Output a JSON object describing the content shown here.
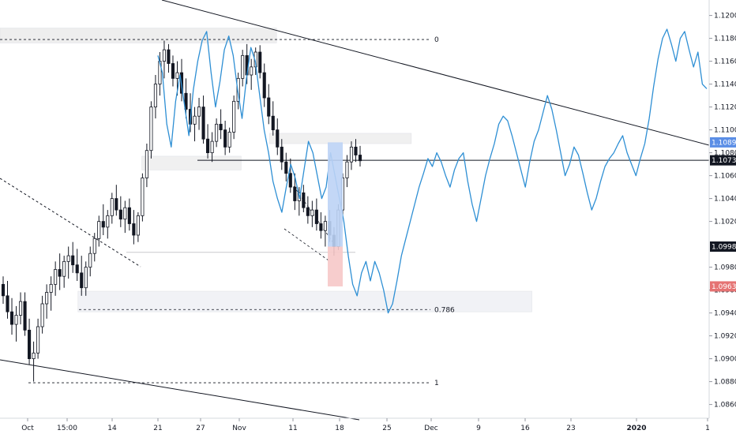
{
  "chart_data": {
    "type": "line",
    "title": "",
    "xlabel": "",
    "ylabel": "",
    "ylim": [
      1.0848,
      1.1208
    ],
    "y_ticks": [
      {
        "value": 1.12,
        "label": "1.12000"
      },
      {
        "value": 1.118,
        "label": "1.11800"
      },
      {
        "value": 1.116,
        "label": "1.11600"
      },
      {
        "value": 1.114,
        "label": "1.11400"
      },
      {
        "value": 1.112,
        "label": "1.11200"
      },
      {
        "value": 1.11,
        "label": "1.11000"
      },
      {
        "value": 1.108,
        "label": "1.10800"
      },
      {
        "value": 1.106,
        "label": "1.10600"
      },
      {
        "value": 1.104,
        "label": "1.10400"
      },
      {
        "value": 1.102,
        "label": "1.10200"
      },
      {
        "value": 1.098,
        "label": "1.09800"
      },
      {
        "value": 1.096,
        "label": "1.09600"
      },
      {
        "value": 1.094,
        "label": "1.09400"
      },
      {
        "value": 1.092,
        "label": "1.09200"
      },
      {
        "value": 1.09,
        "label": "1.09000"
      },
      {
        "value": 1.088,
        "label": "1.08800"
      },
      {
        "value": 1.086,
        "label": "1.08600"
      }
    ],
    "x_ticks": [
      {
        "label": "Oct",
        "bold": false
      },
      {
        "label": "15:00",
        "bold": false
      },
      {
        "label": "14",
        "bold": false
      },
      {
        "label": "21",
        "bold": false
      },
      {
        "label": "27",
        "bold": false
      },
      {
        "label": "Nov",
        "bold": false
      },
      {
        "label": "11",
        "bold": false
      },
      {
        "label": "18",
        "bold": false
      },
      {
        "label": "25",
        "bold": false
      },
      {
        "label": "Dec",
        "bold": false
      },
      {
        "label": "9",
        "bold": false
      },
      {
        "label": "16",
        "bold": false
      },
      {
        "label": "23",
        "bold": false
      },
      {
        "label": "2020",
        "bold": true
      },
      {
        "label": "1",
        "bold": false
      }
    ],
    "price_badges": [
      {
        "value": 1.10891,
        "label": "1.10891",
        "color": "#5b8ee6"
      },
      {
        "value": 1.10734,
        "label": "1.10734",
        "color": "#131722"
      },
      {
        "value": 1.0998,
        "label": "1.09980",
        "color": "#131722"
      },
      {
        "value": 1.09632,
        "label": "1.09632",
        "color": "#e57373"
      }
    ],
    "fib_levels": [
      {
        "value": 1.1179,
        "label": "0"
      },
      {
        "value": 1.0943,
        "label": "0.786"
      },
      {
        "value": 1.0879,
        "label": "1"
      }
    ],
    "series": [
      {
        "kind": "candlestick",
        "ohlc": [
          [
            1.0965,
            1.0972,
            1.0948,
            1.0955
          ],
          [
            1.0955,
            1.0968,
            1.0935,
            1.0941
          ],
          [
            1.0941,
            1.0953,
            1.0921,
            1.093
          ],
          [
            1.093,
            1.0946,
            1.0915,
            1.0938
          ],
          [
            1.0938,
            1.0958,
            1.093,
            1.095
          ],
          [
            1.095,
            1.0958,
            1.092,
            1.0925
          ],
          [
            1.0925,
            1.0935,
            1.0895,
            1.09
          ],
          [
            1.09,
            1.0915,
            1.088,
            1.0905
          ],
          [
            1.0905,
            1.0935,
            1.09,
            1.0928
          ],
          [
            1.0928,
            1.0955,
            1.0922,
            1.0948
          ],
          [
            1.0948,
            1.0965,
            1.0935,
            1.0958
          ],
          [
            1.0958,
            1.0972,
            1.0942,
            1.0965
          ],
          [
            1.0965,
            1.0985,
            1.0955,
            1.0978
          ],
          [
            1.0978,
            1.0992,
            1.096,
            1.0972
          ],
          [
            1.0972,
            1.099,
            1.0962,
            1.0985
          ],
          [
            1.0985,
            1.0998,
            1.097,
            1.099
          ],
          [
            1.099,
            1.1002,
            1.0975,
            1.0982
          ],
          [
            1.0982,
            1.0996,
            1.0968,
            1.0975
          ],
          [
            1.0975,
            1.099,
            1.0955,
            1.0962
          ],
          [
            1.0962,
            1.0985,
            1.0955,
            1.098
          ],
          [
            1.098,
            1.0998,
            1.0972,
            1.0992
          ],
          [
            1.0992,
            1.101,
            1.0985,
            1.1005
          ],
          [
            1.1005,
            1.1025,
            1.0998,
            1.102
          ],
          [
            1.102,
            1.1035,
            1.1008,
            1.1015
          ],
          [
            1.1015,
            1.103,
            1.1005,
            1.1025
          ],
          [
            1.1025,
            1.1045,
            1.1018,
            1.104
          ],
          [
            1.104,
            1.1052,
            1.1025,
            1.103
          ],
          [
            1.103,
            1.1042,
            1.1015,
            1.1022
          ],
          [
            1.1022,
            1.1038,
            1.101,
            1.1032
          ],
          [
            1.1032,
            1.104,
            1.1012,
            1.1018
          ],
          [
            1.1018,
            1.103,
            1.1,
            1.1008
          ],
          [
            1.1008,
            1.1028,
            1.1002,
            1.1025
          ],
          [
            1.1025,
            1.1062,
            1.102,
            1.1058
          ],
          [
            1.1058,
            1.1088,
            1.105,
            1.1082
          ],
          [
            1.1082,
            1.1125,
            1.1075,
            1.112
          ],
          [
            1.112,
            1.1148,
            1.111,
            1.114
          ],
          [
            1.114,
            1.1168,
            1.113,
            1.116
          ],
          [
            1.116,
            1.1178,
            1.1145,
            1.117
          ],
          [
            1.117,
            1.1175,
            1.115,
            1.1158
          ],
          [
            1.1158,
            1.1165,
            1.1138,
            1.1145
          ],
          [
            1.1145,
            1.116,
            1.113,
            1.115
          ],
          [
            1.115,
            1.1162,
            1.1125,
            1.1132
          ],
          [
            1.1132,
            1.1145,
            1.111,
            1.1118
          ],
          [
            1.1118,
            1.1132,
            1.1098,
            1.1105
          ],
          [
            1.1105,
            1.112,
            1.109,
            1.1112
          ],
          [
            1.1112,
            1.1128,
            1.11,
            1.112
          ],
          [
            1.112,
            1.113,
            1.1088,
            1.1092
          ],
          [
            1.1092,
            1.1105,
            1.1075,
            1.108
          ],
          [
            1.108,
            1.1098,
            1.1072,
            1.109
          ],
          [
            1.109,
            1.111,
            1.1085,
            1.1105
          ],
          [
            1.1105,
            1.1118,
            1.1092,
            1.11
          ],
          [
            1.11,
            1.1108,
            1.1078,
            1.1085
          ],
          [
            1.1085,
            1.1102,
            1.108,
            1.1098
          ],
          [
            1.1098,
            1.113,
            1.1092,
            1.1125
          ],
          [
            1.1125,
            1.115,
            1.1118,
            1.1145
          ],
          [
            1.1145,
            1.117,
            1.1138,
            1.1165
          ],
          [
            1.1165,
            1.1175,
            1.114,
            1.1148
          ],
          [
            1.1148,
            1.1162,
            1.1135,
            1.1155
          ],
          [
            1.1155,
            1.1172,
            1.1148,
            1.1168
          ],
          [
            1.1168,
            1.1174,
            1.1145,
            1.115
          ],
          [
            1.115,
            1.1158,
            1.112,
            1.1128
          ],
          [
            1.1128,
            1.114,
            1.1105,
            1.1112
          ],
          [
            1.1112,
            1.1125,
            1.1095,
            1.11
          ],
          [
            1.11,
            1.111,
            1.1078,
            1.1085
          ],
          [
            1.1085,
            1.1092,
            1.1065,
            1.1072
          ],
          [
            1.1072,
            1.108,
            1.1055,
            1.1062
          ],
          [
            1.1062,
            1.1075,
            1.1045,
            1.105
          ],
          [
            1.105,
            1.1062,
            1.103,
            1.1038
          ],
          [
            1.1038,
            1.105,
            1.1025,
            1.1045
          ],
          [
            1.1045,
            1.1052,
            1.1028,
            1.1032
          ],
          [
            1.1032,
            1.1042,
            1.1018,
            1.1025
          ],
          [
            1.1025,
            1.1038,
            1.1015,
            1.103
          ],
          [
            1.103,
            1.104,
            1.1012,
            1.1018
          ],
          [
            1.1018,
            1.1028,
            1.1005,
            1.1012
          ],
          [
            1.1012,
            1.1025,
            1.0998,
            1.102
          ],
          [
            1.102,
            1.103,
            1.1002,
            1.1008
          ],
          [
            1.1008,
            1.1015,
            1.099,
            1.0998
          ],
          [
            1.0998,
            1.1035,
            1.0995,
            1.103
          ],
          [
            1.103,
            1.1062,
            1.1025,
            1.1058
          ],
          [
            1.1058,
            1.1078,
            1.105,
            1.1072
          ],
          [
            1.1072,
            1.109,
            1.1065,
            1.1085
          ],
          [
            1.1085,
            1.1092,
            1.1072,
            1.1078
          ],
          [
            1.1078,
            1.1086,
            1.1068,
            1.1073
          ]
        ]
      },
      {
        "kind": "line",
        "color": "#2e8fd4",
        "values": [
          1.1165,
          1.115,
          1.1105,
          1.1085,
          1.1125,
          1.1148,
          1.1122,
          1.1095,
          1.1135,
          1.116,
          1.1178,
          1.1186,
          1.115,
          1.112,
          1.1142,
          1.117,
          1.1182,
          1.1165,
          1.1135,
          1.111,
          1.1145,
          1.1172,
          1.116,
          1.113,
          1.11,
          1.108,
          1.1055,
          1.104,
          1.1028,
          1.105,
          1.107,
          1.1058,
          1.104,
          1.1065,
          1.109,
          1.108,
          1.106,
          1.104,
          1.105,
          1.108,
          1.106,
          1.104,
          1.102,
          1.099,
          1.0965,
          1.0955,
          1.0975,
          1.0985,
          1.0968,
          1.0985,
          1.0975,
          1.096,
          1.094,
          1.0948,
          1.0968,
          1.099,
          1.1005,
          1.102,
          1.1035,
          1.105,
          1.1062,
          1.1075,
          1.1068,
          1.108,
          1.1072,
          1.106,
          1.105,
          1.1065,
          1.1075,
          1.108,
          1.1055,
          1.1035,
          1.102,
          1.104,
          1.106,
          1.1075,
          1.1088,
          1.1105,
          1.1112,
          1.1108,
          1.1095,
          1.108,
          1.1065,
          1.105,
          1.1072,
          1.109,
          1.11,
          1.1115,
          1.113,
          1.1118,
          1.11,
          1.108,
          1.106,
          1.107,
          1.1085,
          1.1078,
          1.1062,
          1.1045,
          1.103,
          1.104,
          1.1055,
          1.1068,
          1.1075,
          1.108,
          1.1088,
          1.1095,
          1.108,
          1.107,
          1.106,
          1.1075,
          1.1088,
          1.111,
          1.1138,
          1.1162,
          1.118,
          1.1188,
          1.1175,
          1.116,
          1.118,
          1.1186,
          1.117,
          1.1155,
          1.1168,
          1.114,
          1.1136
        ]
      }
    ],
    "boxes": [
      {
        "label": "",
        "x0": 0.0,
        "x1": 0.39,
        "y0": 1.1176,
        "y1": 1.1189,
        "color": "#eeeeee"
      },
      {
        "label": "",
        "x0": 0.2,
        "x1": 0.34,
        "y0": 1.1065,
        "y1": 1.1077,
        "color": "#f0f0f0"
      },
      {
        "label": "",
        "x0": 0.38,
        "x1": 0.58,
        "y0": 1.1088,
        "y1": 1.1097,
        "color": "#f0f0f0"
      },
      {
        "label": "",
        "x0": 0.11,
        "x1": 0.75,
        "y0": 1.0941,
        "y1": 1.0959,
        "color": "#f1f2f6"
      }
    ]
  }
}
